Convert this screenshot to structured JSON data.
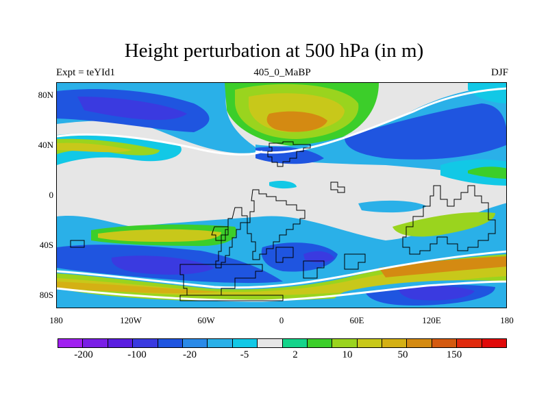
{
  "title": "Height perturbation at 500 hPa (in m)",
  "left_label": "Expt = teYId1",
  "center_label": "405_0_MaBP",
  "right_label": "DJF",
  "y_ticks": [
    "80N",
    "40N",
    "0",
    "40S",
    "80S"
  ],
  "x_ticks": [
    "180",
    "120W",
    "60W",
    "0",
    "60E",
    "120E",
    "180"
  ],
  "colorbar": {
    "colors": [
      "#a020f0",
      "#7a1fe6",
      "#5a1ee0",
      "#3a3ae0",
      "#1f55e0",
      "#2a8ae8",
      "#2ab0e8",
      "#12c8e6",
      "#e6e6e6",
      "#14d48a",
      "#3cce2a",
      "#9ad41e",
      "#c8c81a",
      "#d4b014",
      "#d48a12",
      "#d45a10",
      "#e02a0e",
      "#e00a0a"
    ],
    "labels": [
      "-200",
      "-100",
      "-20",
      "-5",
      "2",
      "10",
      "50",
      "150"
    ]
  },
  "chart_data": {
    "type": "heatmap",
    "title": "Height perturbation at 500 hPa (in m)",
    "xlim": [
      -180,
      180
    ],
    "ylim": [
      -90,
      90
    ],
    "contour_levels": [
      -200,
      -100,
      -20,
      -5,
      2,
      10,
      50,
      150
    ]
  }
}
